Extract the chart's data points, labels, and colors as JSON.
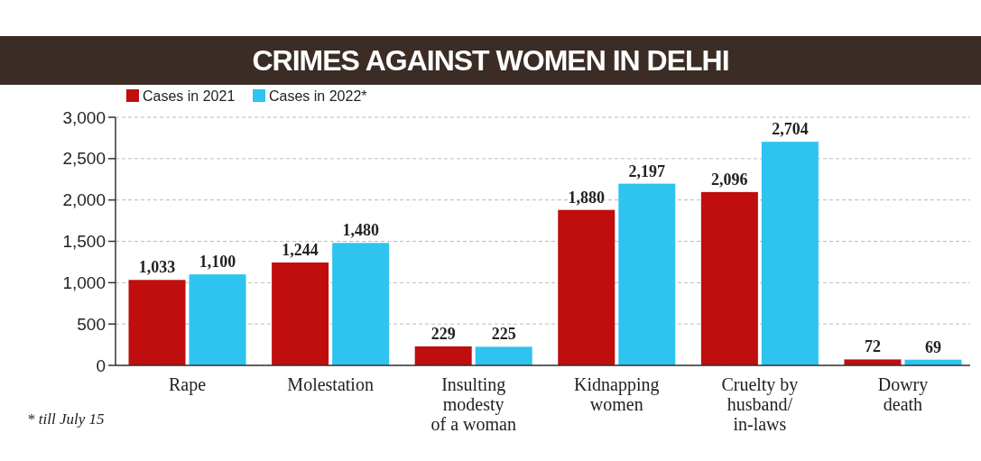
{
  "chart_data": {
    "type": "bar",
    "title": "CRIMES AGAINST WOMEN IN DELHI",
    "categories": [
      "Rape",
      "Molestation",
      "Insulting\nmodesty\nof a woman",
      "Kidnapping\nwomen",
      "Cruelty by\nhusband/\nin-laws",
      "Dowry\ndeath"
    ],
    "series": [
      {
        "name": "Cases in 2021",
        "color": "#c00d0d",
        "values": [
          1033,
          1244,
          229,
          1880,
          2096,
          72
        ],
        "value_labels": [
          "1,033",
          "1,244",
          "229",
          "1,880",
          "2,096",
          "72"
        ]
      },
      {
        "name": "Cases in 2022*",
        "color": "#2ec4ef",
        "values": [
          1100,
          1480,
          225,
          2197,
          2704,
          69
        ],
        "value_labels": [
          "1,100",
          "1,480",
          "225",
          "2,197",
          "2,704",
          "69"
        ]
      }
    ],
    "ylim": [
      0,
      3000
    ],
    "yticks": [
      {
        "value": 0,
        "label": "0"
      },
      {
        "value": 500,
        "label": "500"
      },
      {
        "value": 1000,
        "label": "1,000"
      },
      {
        "value": 1500,
        "label": "1,500"
      },
      {
        "value": 2000,
        "label": "2,000"
      },
      {
        "value": 2500,
        "label": "2,500"
      },
      {
        "value": 3000,
        "label": "3,000"
      }
    ],
    "grid": "y",
    "legend": "top left",
    "annotations": [
      "* till July 15"
    ]
  }
}
